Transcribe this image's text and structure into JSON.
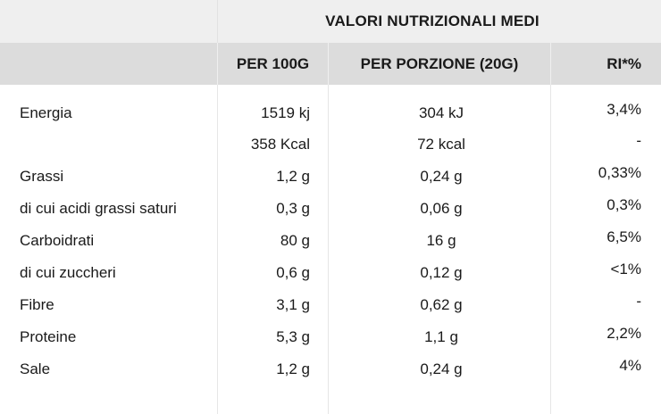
{
  "header": {
    "title": "VALORI NUTRIZIONALI MEDI",
    "col_per100": "PER 100G",
    "col_portion": "PER PORZIONE (20G)",
    "col_ri": "RI*%"
  },
  "rows": [
    {
      "label": "Energia",
      "per100": "1519 kj",
      "portion": "304 kJ",
      "ri": "3,4%"
    },
    {
      "label": "",
      "per100": "358 Kcal",
      "portion": "72 kcal",
      "ri": "-"
    },
    {
      "label": "Grassi",
      "per100": "1,2 g",
      "portion": "0,24 g",
      "ri": "0,33%"
    },
    {
      "label": "di cui acidi grassi saturi",
      "per100": "0,3 g",
      "portion": "0,06 g",
      "ri": "0,3%"
    },
    {
      "label": "Carboidrati",
      "per100": "80 g",
      "portion": "16 g",
      "ri": "6,5%"
    },
    {
      "label": "di cui zuccheri",
      "per100": "0,6 g",
      "portion": "0,12 g",
      "ri": "<1%"
    },
    {
      "label": "Fibre",
      "per100": "3,1 g",
      "portion": "0,62 g",
      "ri": "-"
    },
    {
      "label": "Proteine",
      "per100": "5,3 g",
      "portion": "1,1 g",
      "ri": "2,2%"
    },
    {
      "label": "Sale",
      "per100": "1,2 g",
      "portion": "0,24 g",
      "ri": "4%"
    }
  ]
}
